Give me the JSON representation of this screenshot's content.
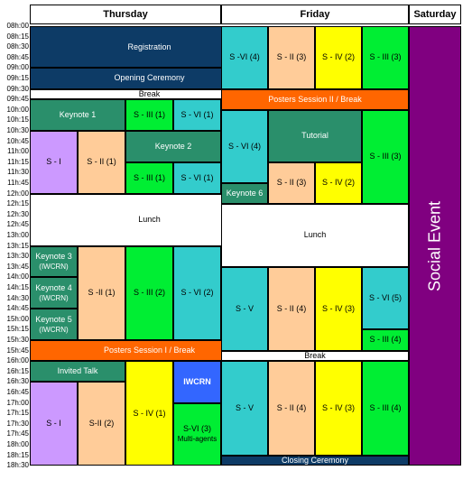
{
  "header": {
    "days": [
      {
        "key": "thursday",
        "label": "Thursday"
      },
      {
        "key": "friday",
        "label": "Friday"
      },
      {
        "key": "saturday",
        "label": "Saturday"
      }
    ]
  },
  "times": [
    "08h:00",
    "08h:15",
    "08h:30",
    "08h:45",
    "09h:00",
    "09h:15",
    "09h:30",
    "09h:45",
    "10h:00",
    "10h:15",
    "10h:30",
    "10h:45",
    "11h:00",
    "11h:15",
    "11h:30",
    "11h:45",
    "12h:00",
    "12h:15",
    "12h:30",
    "12h:45",
    "13h:00",
    "13h:15",
    "13h:30",
    "13h:45",
    "14h:00",
    "14h:15",
    "14h:30",
    "14h:45",
    "15h:00",
    "15h:15",
    "15h:30",
    "15h:45",
    "16h:00",
    "16h:15",
    "16h:30",
    "16h:45",
    "17h:00",
    "17h:15",
    "17h:30",
    "17h:45",
    "18h:00",
    "18h:15",
    "18h:30"
  ],
  "colors": {
    "navy": "#0d3b66",
    "teal": "#2a8f6b",
    "green": "#00ee33",
    "cyan": "#33cccc",
    "purple": "#cc99ff",
    "peach": "#ffcc99",
    "yellow": "#ffff00",
    "orange": "#ff6600",
    "blue": "#3366ff",
    "magenta": "#800080",
    "white": "#ffffff"
  },
  "blocks": [
    {
      "day": "thursday",
      "col": 0,
      "span": 5,
      "start": 0,
      "end": 4,
      "label": "Registration",
      "color": "navy",
      "fg": "#ffffff"
    },
    {
      "day": "thursday",
      "col": 0,
      "span": 5,
      "start": 4,
      "end": 6,
      "label": "Opening Ceremony",
      "color": "navy",
      "fg": "#ffffff"
    },
    {
      "day": "thursday",
      "col": 0,
      "span": 5,
      "start": 6,
      "end": 7,
      "label": "Break",
      "color": "white",
      "fg": "#000000"
    },
    {
      "day": "thursday",
      "col": 0,
      "span": 2,
      "start": 7,
      "end": 10,
      "label": "Keynote 1",
      "color": "teal",
      "fg": "#ffffff"
    },
    {
      "day": "thursday",
      "col": 2,
      "span": 1,
      "start": 7,
      "end": 10,
      "label": "S - III (1)",
      "color": "green",
      "fg": "#000000"
    },
    {
      "day": "thursday",
      "col": 3,
      "span": 1,
      "start": 7,
      "end": 10,
      "label": "S - VI (1)",
      "color": "cyan",
      "fg": "#000000"
    },
    {
      "day": "thursday",
      "col": 0,
      "span": 1,
      "start": 10,
      "end": 16,
      "label": "S - I",
      "color": "purple",
      "fg": "#000000"
    },
    {
      "day": "thursday",
      "col": 1,
      "span": 1,
      "start": 10,
      "end": 16,
      "label": "S - II (1)",
      "color": "peach",
      "fg": "#000000"
    },
    {
      "day": "thursday",
      "col": 2,
      "span": 2,
      "start": 10,
      "end": 13,
      "label": "Keynote 2",
      "color": "teal",
      "fg": "#ffffff"
    },
    {
      "day": "thursday",
      "col": 2,
      "span": 1,
      "start": 13,
      "end": 16,
      "label": "S - III (1)",
      "color": "green",
      "fg": "#000000"
    },
    {
      "day": "thursday",
      "col": 3,
      "span": 1,
      "start": 13,
      "end": 16,
      "label": "S - VI (1)",
      "color": "cyan",
      "fg": "#000000"
    },
    {
      "day": "thursday",
      "col": 0,
      "span": 5,
      "start": 16,
      "end": 21,
      "label": "Lunch",
      "color": "white",
      "fg": "#000000"
    },
    {
      "day": "thursday",
      "col": 0,
      "span": 1,
      "start": 21,
      "end": 24,
      "label": "Keynote 3",
      "sub": "(IWCRN)",
      "color": "teal",
      "fg": "#ffffff"
    },
    {
      "day": "thursday",
      "col": 0,
      "span": 1,
      "start": 24,
      "end": 27,
      "label": "Keynote 4",
      "sub": "(IWCRN)",
      "color": "teal",
      "fg": "#ffffff"
    },
    {
      "day": "thursday",
      "col": 0,
      "span": 1,
      "start": 27,
      "end": 30,
      "label": "Keynote 5",
      "sub": "(IWCRN)",
      "color": "teal",
      "fg": "#ffffff"
    },
    {
      "day": "thursday",
      "col": 1,
      "span": 1,
      "start": 21,
      "end": 30,
      "label": "S -II (1)",
      "color": "peach",
      "fg": "#000000"
    },
    {
      "day": "thursday",
      "col": 2,
      "span": 1,
      "start": 21,
      "end": 30,
      "label": "S - III (2)",
      "color": "green",
      "fg": "#000000"
    },
    {
      "day": "thursday",
      "col": 3,
      "span": 1,
      "start": 21,
      "end": 30,
      "label": "S - VI (2)",
      "color": "cyan",
      "fg": "#000000"
    },
    {
      "day": "thursday",
      "col": 0,
      "span": 5,
      "start": 30,
      "end": 32,
      "label": "Posters Session I / Break",
      "color": "orange",
      "fg": "#ffffff"
    },
    {
      "day": "thursday",
      "col": 0,
      "span": 2,
      "start": 32,
      "end": 34,
      "label": "Invited Talk",
      "color": "teal",
      "fg": "#ffffff"
    },
    {
      "day": "thursday",
      "col": 0,
      "span": 1,
      "start": 34,
      "end": 42,
      "label": "S - I",
      "color": "purple",
      "fg": "#000000"
    },
    {
      "day": "thursday",
      "col": 1,
      "span": 1,
      "start": 34,
      "end": 42,
      "label": "S-II (2)",
      "color": "peach",
      "fg": "#000000"
    },
    {
      "day": "thursday",
      "col": 2,
      "span": 1,
      "start": 32,
      "end": 42,
      "label": "S - IV (1)",
      "color": "yellow",
      "fg": "#000000"
    },
    {
      "day": "thursday",
      "col": 3,
      "span": 1,
      "start": 32,
      "end": 36,
      "label": "IWCRN",
      "color": "blue",
      "fg": "#ffffff",
      "bold": true
    },
    {
      "day": "thursday",
      "col": 3,
      "span": 1,
      "start": 36,
      "end": 42,
      "label": "S-VI (3)",
      "sub": "Multi-agents",
      "color": "green",
      "fg": "#000000"
    },
    {
      "day": "friday",
      "col": 0,
      "span": 1,
      "start": 0,
      "end": 6,
      "label": "S -VI (4)",
      "color": "cyan",
      "fg": "#000000"
    },
    {
      "day": "friday",
      "col": 1,
      "span": 1,
      "start": 0,
      "end": 6,
      "label": "S - II (3)",
      "color": "peach",
      "fg": "#000000"
    },
    {
      "day": "friday",
      "col": 2,
      "span": 1,
      "start": 0,
      "end": 6,
      "label": "S - IV (2)",
      "color": "yellow",
      "fg": "#000000"
    },
    {
      "day": "friday",
      "col": 3,
      "span": 1,
      "start": 0,
      "end": 6,
      "label": "S - III (3)",
      "color": "green",
      "fg": "#000000"
    },
    {
      "day": "friday",
      "col": 0,
      "span": 4,
      "start": 6,
      "end": 8,
      "label": "Posters Session II / Break",
      "color": "orange",
      "fg": "#ffffff"
    },
    {
      "day": "friday",
      "col": 0,
      "span": 1,
      "start": 8,
      "end": 15,
      "label": "S - VI (4)",
      "color": "cyan",
      "fg": "#000000"
    },
    {
      "day": "friday",
      "col": 0,
      "span": 1,
      "start": 15,
      "end": 17,
      "label": "Keynote 6",
      "color": "teal",
      "fg": "#ffffff"
    },
    {
      "day": "friday",
      "col": 1,
      "span": 2,
      "start": 8,
      "end": 13,
      "label": "Tutorial",
      "color": "teal",
      "fg": "#ffffff"
    },
    {
      "day": "friday",
      "col": 1,
      "span": 1,
      "start": 13,
      "end": 17,
      "label": "S - II (3)",
      "color": "peach",
      "fg": "#000000"
    },
    {
      "day": "friday",
      "col": 2,
      "span": 1,
      "start": 13,
      "end": 17,
      "label": "S - IV (2)",
      "color": "yellow",
      "fg": "#000000"
    },
    {
      "day": "friday",
      "col": 3,
      "span": 1,
      "start": 8,
      "end": 17,
      "label": "S - III (3)",
      "color": "green",
      "fg": "#000000"
    },
    {
      "day": "friday",
      "col": 0,
      "span": 4,
      "start": 17,
      "end": 23,
      "label": "Lunch",
      "color": "white",
      "fg": "#000000"
    },
    {
      "day": "friday",
      "col": 0,
      "span": 1,
      "start": 23,
      "end": 31,
      "label": "S - V",
      "color": "cyan",
      "fg": "#000000"
    },
    {
      "day": "friday",
      "col": 1,
      "span": 1,
      "start": 23,
      "end": 31,
      "label": "S - II (4)",
      "color": "peach",
      "fg": "#000000"
    },
    {
      "day": "friday",
      "col": 2,
      "span": 1,
      "start": 23,
      "end": 31,
      "label": "S - IV (3)",
      "color": "yellow",
      "fg": "#000000"
    },
    {
      "day": "friday",
      "col": 3,
      "span": 1,
      "start": 23,
      "end": 29,
      "label": "S - VI (5)",
      "color": "cyan",
      "fg": "#000000"
    },
    {
      "day": "friday",
      "col": 3,
      "span": 1,
      "start": 29,
      "end": 31,
      "label": "S - III (4)",
      "color": "green",
      "fg": "#000000"
    },
    {
      "day": "friday",
      "col": 0,
      "span": 4,
      "start": 31,
      "end": 32,
      "label": "Break",
      "color": "white",
      "fg": "#000000"
    },
    {
      "day": "friday",
      "col": 0,
      "span": 1,
      "start": 32,
      "end": 41,
      "label": "S - V",
      "color": "cyan",
      "fg": "#000000"
    },
    {
      "day": "friday",
      "col": 1,
      "span": 1,
      "start": 32,
      "end": 41,
      "label": "S - II (4)",
      "color": "peach",
      "fg": "#000000"
    },
    {
      "day": "friday",
      "col": 2,
      "span": 1,
      "start": 32,
      "end": 41,
      "label": "S - IV (3)",
      "color": "yellow",
      "fg": "#000000"
    },
    {
      "day": "friday",
      "col": 3,
      "span": 1,
      "start": 32,
      "end": 41,
      "label": "S - III (4)",
      "color": "green",
      "fg": "#000000"
    },
    {
      "day": "friday",
      "col": 0,
      "span": 4,
      "start": 41,
      "end": 42,
      "label": "Closing Ceremony",
      "color": "navy",
      "fg": "#ffffff"
    },
    {
      "day": "saturday",
      "col": 0,
      "span": 1,
      "start": 0,
      "end": 42,
      "label": "Social Event",
      "color": "magenta",
      "fg": "#ffffff",
      "vertical": true
    }
  ]
}
